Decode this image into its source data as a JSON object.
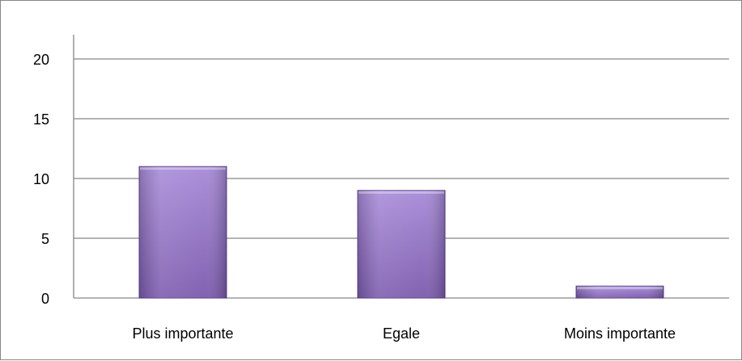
{
  "chart_data": {
    "type": "bar",
    "categories": [
      "Plus importante",
      "Egale",
      "Moins importante"
    ],
    "values": [
      11,
      9,
      1
    ],
    "ylim": [
      0,
      20
    ],
    "yticks": [
      0,
      5,
      10,
      15,
      20
    ],
    "grid": true,
    "legend": "none",
    "colors": {
      "bar_fill_top": "#a78ad8",
      "bar_fill_bottom": "#7b5aad",
      "bar_edge": "#5e4590",
      "gridline": "#868686",
      "axis": "#868686"
    }
  }
}
